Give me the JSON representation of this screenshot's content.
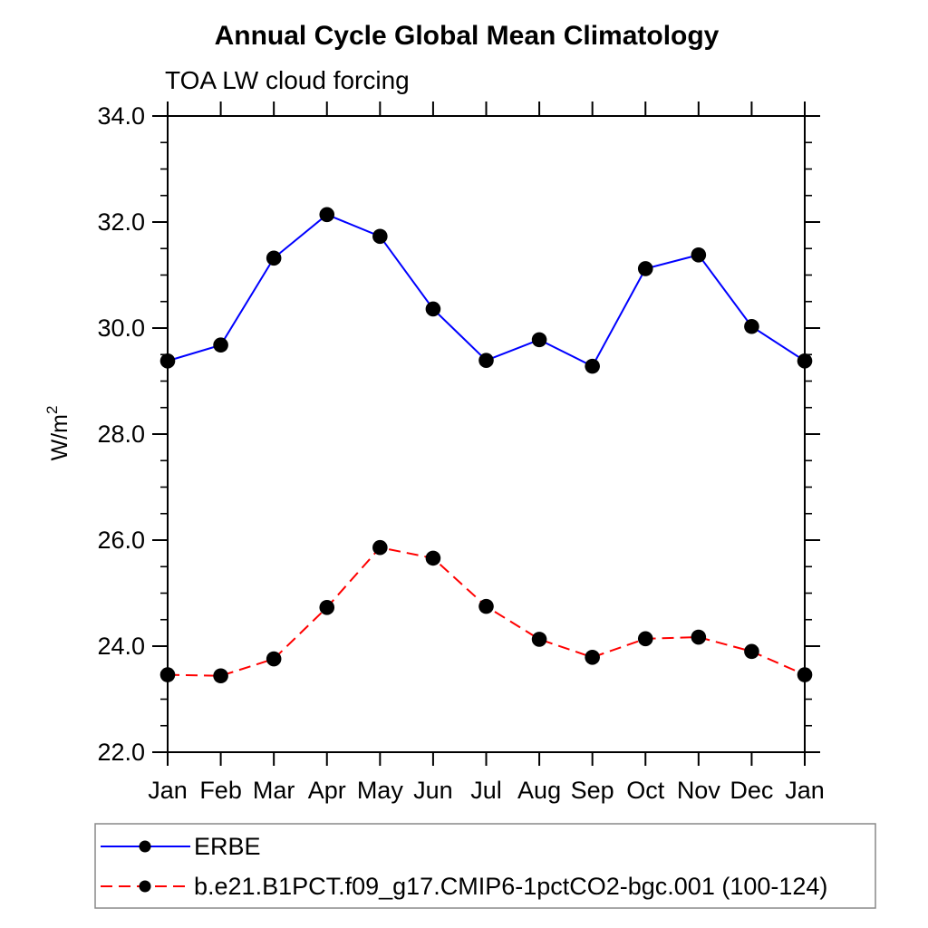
{
  "page": {
    "background": "#ffffff",
    "frame_color": "#000000",
    "text_color": "#000000"
  },
  "chart_data": {
    "type": "line",
    "title": "Annual Cycle Global Mean Climatology",
    "subtitle": "TOA LW cloud forcing",
    "ylabel_base": "W/m",
    "ylabel_sup": "2",
    "categories": [
      "Jan",
      "Feb",
      "Mar",
      "Apr",
      "May",
      "Jun",
      "Jul",
      "Aug",
      "Sep",
      "Oct",
      "Nov",
      "Dec",
      "Jan"
    ],
    "ylim": [
      22.0,
      34.0
    ],
    "yticks_major": [
      {
        "value": 22.0,
        "label": "22.0"
      },
      {
        "value": 24.0,
        "label": "24.0"
      },
      {
        "value": 26.0,
        "label": "26.0"
      },
      {
        "value": 28.0,
        "label": "28.0"
      },
      {
        "value": 30.0,
        "label": "30.0"
      },
      {
        "value": 32.0,
        "label": "32.0"
      },
      {
        "value": 34.0,
        "label": "34.0"
      }
    ],
    "ytick_minor_step": 0.5,
    "grid": false,
    "legend_position": "bottom-left",
    "legend_border_color": "#888888",
    "marker": "filled-circle",
    "marker_color": "#000000",
    "series": [
      {
        "name": "ERBE",
        "color": "#0000ff",
        "line_style": "solid",
        "values": [
          29.38,
          29.68,
          31.32,
          32.14,
          31.73,
          30.36,
          29.39,
          29.78,
          29.28,
          31.12,
          31.38,
          30.03,
          29.38
        ]
      },
      {
        "name": "b.e21.B1PCT.f09_g17.CMIP6-1pctCO2-bgc.001 (100-124)",
        "color": "#ff0000",
        "line_style": "dashed",
        "values": [
          23.46,
          23.44,
          23.76,
          24.73,
          25.86,
          25.66,
          24.75,
          24.13,
          23.79,
          24.14,
          24.17,
          23.9,
          23.46
        ]
      }
    ]
  }
}
